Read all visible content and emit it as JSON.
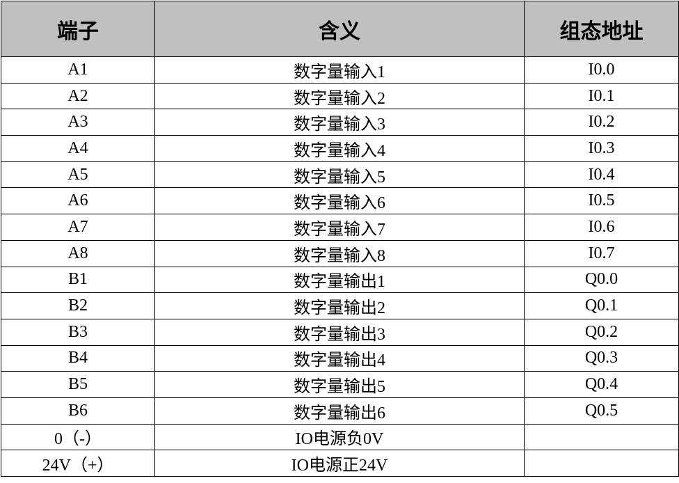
{
  "table": {
    "headers": [
      "端子",
      "含义",
      "组态地址"
    ],
    "header_bg": "#c0c0c0",
    "rows": [
      [
        "A1",
        "数字量输入1",
        "I0.0"
      ],
      [
        "A2",
        "数字量输入2",
        "I0.1"
      ],
      [
        "A3",
        "数字量输入3",
        "I0.2"
      ],
      [
        "A4",
        "数字量输入4",
        "I0.3"
      ],
      [
        "A5",
        "数字量输入5",
        "I0.4"
      ],
      [
        "A6",
        "数字量输入6",
        "I0.5"
      ],
      [
        "A7",
        "数字量输入7",
        "I0.6"
      ],
      [
        "A8",
        "数字量输入8",
        "I0.7"
      ],
      [
        "B1",
        "数字量输出1",
        "Q0.0"
      ],
      [
        "B2",
        "数字量输出2",
        "Q0.1"
      ],
      [
        "B3",
        "数字量输出3",
        "Q0.2"
      ],
      [
        "B4",
        "数字量输出4",
        "Q0.3"
      ],
      [
        "B5",
        "数字量输出5",
        "Q0.4"
      ],
      [
        "B6",
        "数字量输出6",
        "Q0.5"
      ],
      [
        "0（-）",
        "IO电源负0V",
        ""
      ],
      [
        "24V（+）",
        "IO电源正24V",
        ""
      ]
    ]
  }
}
